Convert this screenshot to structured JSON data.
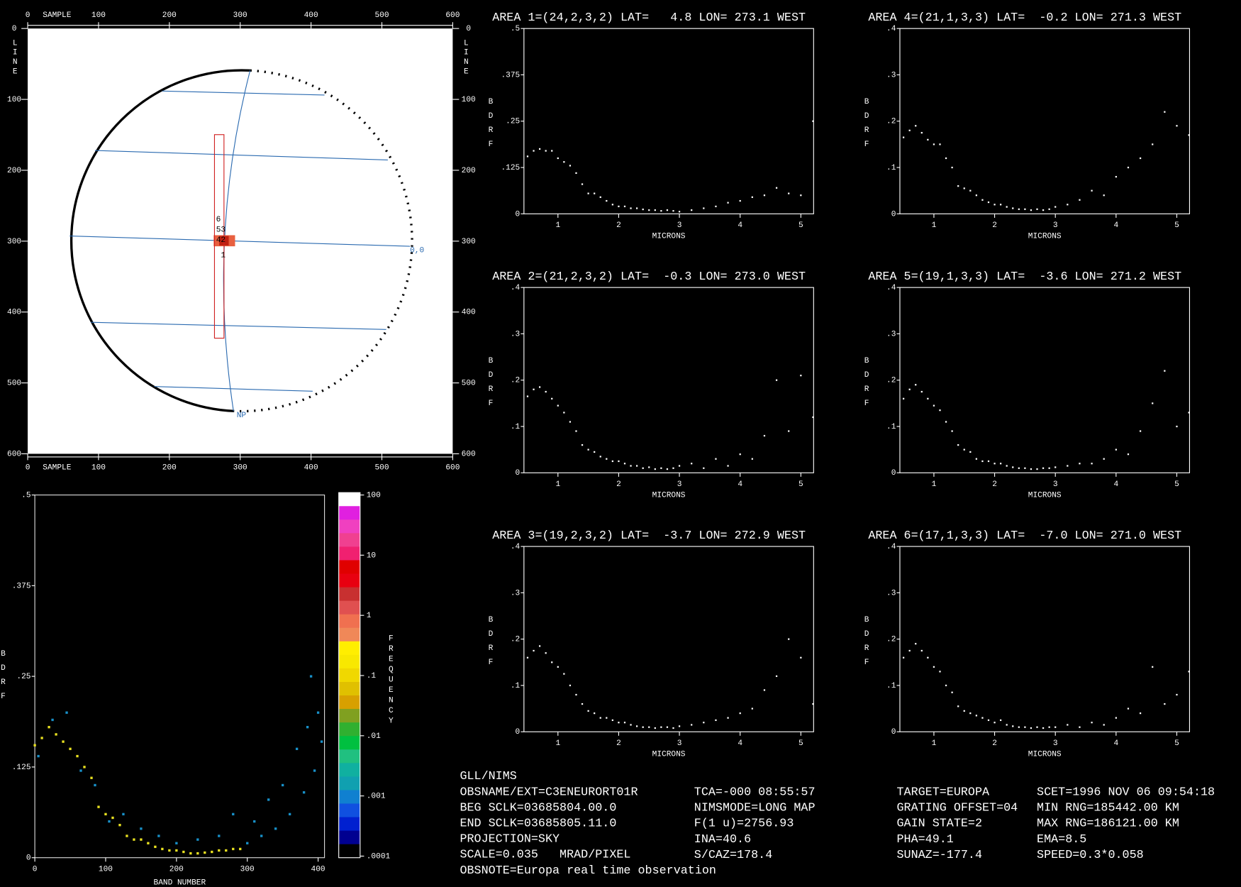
{
  "chart_data": [
    {
      "type": "map",
      "xlabel": "SAMPLE",
      "ylabel": "LINE",
      "xlim": [
        0,
        600
      ],
      "ylim": [
        0,
        600
      ],
      "yinverted": true,
      "xticks": [
        0,
        100,
        200,
        300,
        400,
        500,
        600
      ],
      "yticks": [
        0,
        100,
        200,
        300,
        400,
        500,
        600
      ],
      "annotations": [
        "6",
        "53",
        "42",
        "1",
        "0,0",
        "NP"
      ]
    },
    {
      "type": "scatter",
      "title": "AREA 1=(24,2,3,2) LAT=   4.8 LON= 273.1 WEST",
      "xlabel": "MICRONS",
      "ylabel": "BDRF",
      "color": "#ffffff",
      "xlim": [
        0.44,
        5.21
      ],
      "ylim": [
        0,
        0.5
      ],
      "xticks": [
        1,
        2,
        3,
        4,
        5
      ],
      "yticks": [
        0,
        {
          "value": 0.125,
          "label": ".125"
        },
        {
          "value": 0.25,
          "label": ".25"
        },
        {
          "value": 0.375,
          "label": ".375"
        },
        {
          "value": 0.5,
          "label": ".5"
        }
      ],
      "x": [
        0.5,
        0.6,
        0.7,
        0.8,
        0.9,
        1.0,
        1.1,
        1.2,
        1.3,
        1.4,
        1.5,
        1.6,
        1.7,
        1.8,
        1.9,
        2.0,
        2.1,
        2.2,
        2.3,
        2.4,
        2.5,
        2.6,
        2.7,
        2.8,
        2.9,
        3.0,
        3.2,
        3.4,
        3.6,
        3.8,
        4.0,
        4.2,
        4.4,
        4.6,
        4.8,
        5.0,
        5.2
      ],
      "values": [
        0.155,
        0.17,
        0.175,
        0.17,
        0.17,
        0.15,
        0.14,
        0.13,
        0.11,
        0.08,
        0.055,
        0.055,
        0.045,
        0.035,
        0.025,
        0.02,
        0.02,
        0.015,
        0.015,
        0.012,
        0.01,
        0.01,
        0.008,
        0.01,
        0.008,
        0.006,
        0.01,
        0.015,
        0.02,
        0.03,
        0.035,
        0.045,
        0.05,
        0.07,
        0.055,
        0.05,
        0.25
      ]
    },
    {
      "type": "scatter",
      "title": "AREA 2=(21,2,3,2) LAT=  -0.3 LON= 273.0 WEST",
      "xlabel": "MICRONS",
      "ylabel": "BDRF",
      "color": "#ffffff",
      "xlim": [
        0.44,
        5.21
      ],
      "ylim": [
        0,
        0.4
      ],
      "xticks": [
        1,
        2,
        3,
        4,
        5
      ],
      "yticks": [
        0,
        {
          "value": 0.1,
          "label": ".1"
        },
        {
          "value": 0.2,
          "label": ".2"
        },
        {
          "value": 0.3,
          "label": ".3"
        },
        {
          "value": 0.4,
          "label": ".4"
        }
      ],
      "x": [
        0.5,
        0.6,
        0.7,
        0.8,
        0.9,
        1.0,
        1.1,
        1.2,
        1.3,
        1.4,
        1.5,
        1.6,
        1.7,
        1.8,
        1.9,
        2.0,
        2.1,
        2.2,
        2.3,
        2.4,
        2.5,
        2.6,
        2.7,
        2.8,
        2.9,
        3.0,
        3.2,
        3.4,
        3.6,
        3.8,
        4.0,
        4.2,
        4.4,
        4.6,
        4.8,
        5.0,
        5.2
      ],
      "values": [
        0.165,
        0.18,
        0.185,
        0.175,
        0.16,
        0.145,
        0.13,
        0.11,
        0.09,
        0.06,
        0.05,
        0.045,
        0.035,
        0.03,
        0.025,
        0.025,
        0.02,
        0.015,
        0.015,
        0.01,
        0.012,
        0.008,
        0.01,
        0.008,
        0.01,
        0.015,
        0.02,
        0.01,
        0.03,
        0.015,
        0.04,
        0.03,
        0.08,
        0.2,
        0.09,
        0.21,
        0.12
      ]
    },
    {
      "type": "scatter",
      "title": "AREA 3=(19,2,3,2) LAT=  -3.7 LON= 272.9 WEST",
      "xlabel": "MICRONS",
      "ylabel": "BDRF",
      "color": "#ffffff",
      "xlim": [
        0.44,
        5.21
      ],
      "ylim": [
        0,
        0.4
      ],
      "xticks": [
        1,
        2,
        3,
        4,
        5
      ],
      "yticks": [
        0,
        {
          "value": 0.1,
          "label": ".1"
        },
        {
          "value": 0.2,
          "label": ".2"
        },
        {
          "value": 0.3,
          "label": ".3"
        },
        {
          "value": 0.4,
          "label": ".4"
        }
      ],
      "x": [
        0.5,
        0.6,
        0.7,
        0.8,
        0.9,
        1.0,
        1.1,
        1.2,
        1.3,
        1.4,
        1.5,
        1.6,
        1.7,
        1.8,
        1.9,
        2.0,
        2.1,
        2.2,
        2.3,
        2.4,
        2.5,
        2.6,
        2.7,
        2.8,
        2.9,
        3.0,
        3.2,
        3.4,
        3.6,
        3.8,
        4.0,
        4.2,
        4.4,
        4.6,
        4.8,
        5.0,
        5.2
      ],
      "values": [
        0.16,
        0.175,
        0.185,
        0.17,
        0.15,
        0.14,
        0.125,
        0.1,
        0.08,
        0.06,
        0.045,
        0.04,
        0.03,
        0.03,
        0.025,
        0.02,
        0.02,
        0.015,
        0.012,
        0.01,
        0.01,
        0.008,
        0.01,
        0.01,
        0.008,
        0.012,
        0.015,
        0.02,
        0.025,
        0.03,
        0.04,
        0.05,
        0.09,
        0.12,
        0.2,
        0.16,
        0.06
      ]
    },
    {
      "type": "scatter",
      "title": "AREA 4=(21,1,3,3) LAT=  -0.2 LON= 271.3 WEST",
      "xlabel": "MICRONS",
      "ylabel": "BDRF",
      "color": "#ffffff",
      "xlim": [
        0.44,
        5.21
      ],
      "ylim": [
        0,
        0.4
      ],
      "xticks": [
        1,
        2,
        3,
        4,
        5
      ],
      "yticks": [
        0,
        {
          "value": 0.1,
          "label": ".1"
        },
        {
          "value": 0.2,
          "label": ".2"
        },
        {
          "value": 0.3,
          "label": ".3"
        },
        {
          "value": 0.4,
          "label": ".4"
        }
      ],
      "x": [
        0.5,
        0.6,
        0.7,
        0.8,
        0.9,
        1.0,
        1.1,
        1.2,
        1.3,
        1.4,
        1.5,
        1.6,
        1.7,
        1.8,
        1.9,
        2.0,
        2.1,
        2.2,
        2.3,
        2.4,
        2.5,
        2.6,
        2.7,
        2.8,
        2.9,
        3.0,
        3.2,
        3.4,
        3.6,
        3.8,
        4.0,
        4.2,
        4.4,
        4.6,
        4.8,
        5.0,
        5.2
      ],
      "values": [
        0.165,
        0.18,
        0.19,
        0.175,
        0.16,
        0.15,
        0.15,
        0.12,
        0.1,
        0.06,
        0.055,
        0.05,
        0.04,
        0.03,
        0.025,
        0.02,
        0.02,
        0.015,
        0.012,
        0.01,
        0.01,
        0.008,
        0.01,
        0.008,
        0.01,
        0.015,
        0.02,
        0.03,
        0.05,
        0.04,
        0.08,
        0.1,
        0.12,
        0.15,
        0.22,
        0.19,
        0.17
      ]
    },
    {
      "type": "scatter",
      "title": "AREA 5=(19,1,3,3) LAT=  -3.6 LON= 271.2 WEST",
      "xlabel": "MICRONS",
      "ylabel": "BDRF",
      "color": "#ffffff",
      "xlim": [
        0.44,
        5.21
      ],
      "ylim": [
        0,
        0.4
      ],
      "xticks": [
        1,
        2,
        3,
        4,
        5
      ],
      "yticks": [
        0,
        {
          "value": 0.1,
          "label": ".1"
        },
        {
          "value": 0.2,
          "label": ".2"
        },
        {
          "value": 0.3,
          "label": ".3"
        },
        {
          "value": 0.4,
          "label": ".4"
        }
      ],
      "x": [
        0.5,
        0.6,
        0.7,
        0.8,
        0.9,
        1.0,
        1.1,
        1.2,
        1.3,
        1.4,
        1.5,
        1.6,
        1.7,
        1.8,
        1.9,
        2.0,
        2.1,
        2.2,
        2.3,
        2.4,
        2.5,
        2.6,
        2.7,
        2.8,
        2.9,
        3.0,
        3.2,
        3.4,
        3.6,
        3.8,
        4.0,
        4.2,
        4.4,
        4.6,
        4.8,
        5.0,
        5.2
      ],
      "values": [
        0.16,
        0.18,
        0.19,
        0.175,
        0.16,
        0.145,
        0.135,
        0.11,
        0.09,
        0.06,
        0.05,
        0.045,
        0.03,
        0.025,
        0.025,
        0.02,
        0.02,
        0.015,
        0.012,
        0.01,
        0.01,
        0.008,
        0.008,
        0.01,
        0.01,
        0.012,
        0.015,
        0.02,
        0.02,
        0.03,
        0.05,
        0.04,
        0.09,
        0.15,
        0.22,
        0.1,
        0.13
      ]
    },
    {
      "type": "scatter",
      "title": "AREA 6=(17,1,3,3) LAT=  -7.0 LON= 271.0 WEST",
      "xlabel": "MICRONS",
      "ylabel": "BDRF",
      "color": "#ffffff",
      "xlim": [
        0.44,
        5.21
      ],
      "ylim": [
        0,
        0.4
      ],
      "xticks": [
        1,
        2,
        3,
        4,
        5
      ],
      "yticks": [
        0,
        {
          "value": 0.1,
          "label": ".1"
        },
        {
          "value": 0.2,
          "label": ".2"
        },
        {
          "value": 0.3,
          "label": ".3"
        },
        {
          "value": 0.4,
          "label": ".4"
        }
      ],
      "x": [
        0.5,
        0.6,
        0.7,
        0.8,
        0.9,
        1.0,
        1.1,
        1.2,
        1.3,
        1.4,
        1.5,
        1.6,
        1.7,
        1.8,
        1.9,
        2.0,
        2.1,
        2.2,
        2.3,
        2.4,
        2.5,
        2.6,
        2.7,
        2.8,
        2.9,
        3.0,
        3.2,
        3.4,
        3.6,
        3.8,
        4.0,
        4.2,
        4.4,
        4.6,
        4.8,
        5.0,
        5.2
      ],
      "values": [
        0.16,
        0.175,
        0.19,
        0.175,
        0.16,
        0.14,
        0.13,
        0.1,
        0.085,
        0.055,
        0.045,
        0.04,
        0.035,
        0.03,
        0.025,
        0.02,
        0.025,
        0.015,
        0.012,
        0.01,
        0.01,
        0.008,
        0.01,
        0.008,
        0.01,
        0.01,
        0.015,
        0.01,
        0.02,
        0.015,
        0.03,
        0.05,
        0.04,
        0.14,
        0.06,
        0.08,
        0.13
      ]
    },
    {
      "type": "density",
      "xlabel": "BAND NUMBER",
      "ylabel": "BDRF",
      "xlim": [
        0,
        409
      ],
      "ylim": [
        0,
        0.5
      ],
      "xticks": [
        0,
        100,
        200,
        300,
        400
      ],
      "yticks": [
        0,
        {
          "value": 0.125,
          "label": ".125"
        },
        {
          "value": 0.25,
          "label": ".25"
        },
        {
          "value": 0.375,
          "label": ".375"
        },
        {
          "value": 0.5,
          "label": ".5"
        }
      ],
      "series": [
        {
          "color": "#e8e020",
          "x": [
            0,
            10,
            20,
            30,
            40,
            50,
            60,
            70,
            80,
            90,
            100,
            110,
            120,
            130,
            140,
            150,
            160,
            170,
            180,
            190,
            200,
            210,
            220,
            230,
            240,
            250,
            260,
            270,
            280,
            290
          ],
          "values": [
            0.155,
            0.165,
            0.18,
            0.17,
            0.16,
            0.15,
            0.14,
            0.125,
            0.11,
            0.07,
            0.06,
            0.055,
            0.045,
            0.03,
            0.025,
            0.025,
            0.02,
            0.015,
            0.012,
            0.01,
            0.01,
            0.008,
            0.006,
            0.006,
            0.007,
            0.008,
            0.01,
            0.01,
            0.012,
            0.012
          ]
        },
        {
          "color": "#1890c8",
          "x": [
            5,
            25,
            45,
            65,
            85,
            105,
            125,
            150,
            175,
            200,
            230,
            260,
            280,
            300,
            310,
            320,
            330,
            340,
            350,
            360,
            370,
            380,
            385,
            390,
            395,
            400,
            405
          ],
          "values": [
            0.14,
            0.19,
            0.2,
            0.12,
            0.1,
            0.05,
            0.06,
            0.04,
            0.03,
            0.02,
            0.025,
            0.03,
            0.06,
            0.02,
            0.05,
            0.03,
            0.08,
            0.04,
            0.1,
            0.06,
            0.15,
            0.09,
            0.18,
            0.25,
            0.12,
            0.2,
            0.16
          ]
        }
      ],
      "colorbar": {
        "label": "FREQUENCY",
        "log": true,
        "lim": [
          0.0001,
          100
        ],
        "ticks": [
          100,
          10,
          1,
          {
            "value": 0.1,
            "label": ".1"
          },
          {
            "value": 0.01,
            "label": ".01"
          },
          {
            "value": 0.001,
            "label": ".001"
          },
          {
            "value": 0.0001,
            "label": ".0001"
          }
        ],
        "colors": [
          "#ffffff",
          "#e020e0",
          "#f040c0",
          "#f04090",
          "#f02070",
          "#e00000",
          "#e80010",
          "#c83030",
          "#e05050",
          "#f07050",
          "#f08858",
          "#ffee00",
          "#f8e800",
          "#f0d800",
          "#e0c000",
          "#d8a000",
          "#80a020",
          "#30b030",
          "#00c040",
          "#20c080",
          "#10b0a0",
          "#10a0b0",
          "#1080d0",
          "#1050e0",
          "#0020d0",
          "#000090",
          "#000000"
        ]
      }
    }
  ],
  "footer": {
    "columns": [
      [
        "GLL/NIMS",
        "OBSNAME/EXT=C3ENEURORT01R",
        "BEG SCLK=03685804.00.0",
        "END SCLK=03685805.11.0",
        "PROJECTION=SKY",
        "SCALE=0.035   MRAD/PIXEL",
        "OBSNOTE=Europa real time observation"
      ],
      [
        "TCA=-000 08:55:57",
        "NIMSMODE=LONG MAP",
        "F(1 u)=2756.93",
        "INA=40.6",
        "S/CAZ=178.4"
      ],
      [
        "TARGET=EUROPA",
        "GRATING OFFSET=04",
        "GAIN STATE=2",
        "PHA=49.1",
        "SUNAZ=-177.4"
      ],
      [
        "SCET=1996 NOV 06 09:54:18",
        "MIN RNG=185442.00 KM",
        "MAX RNG=186121.00 KM",
        "EMA=8.5",
        "SPEED=0.3*0.058"
      ]
    ]
  }
}
